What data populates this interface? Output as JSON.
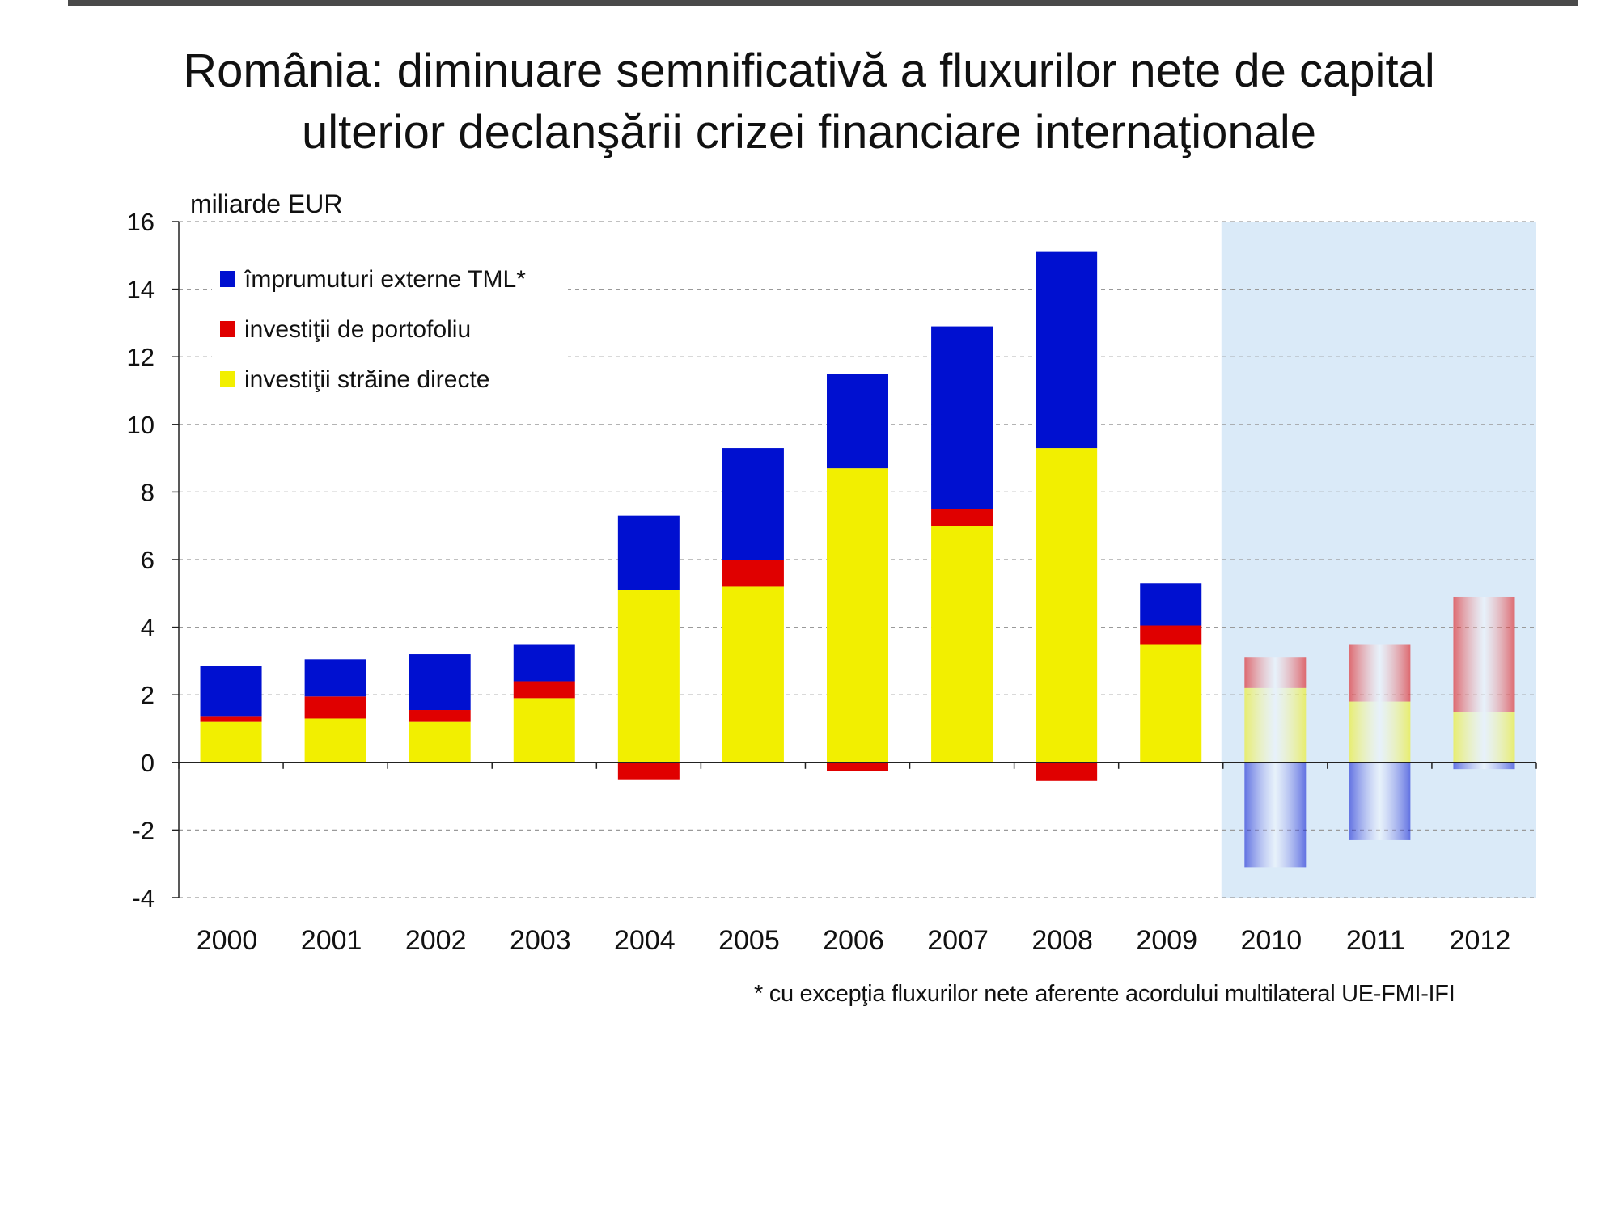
{
  "title": {
    "line1": "România: diminuare semnificativă a fluxurilor nete de capital",
    "line2": "ulterior declanşării crizei financiare internaţionale"
  },
  "footnote": "* cu excepţia fluxurilor nete aferente acordului multilateral UE-FMI-IFI",
  "chart_data": {
    "type": "bar",
    "stacked": true,
    "unit_label": "miliarde EUR",
    "categories": [
      "2000",
      "2001",
      "2002",
      "2003",
      "2004",
      "2005",
      "2006",
      "2007",
      "2008",
      "2009",
      "2010",
      "2011",
      "2012"
    ],
    "series": [
      {
        "name": "investiţii străine directe",
        "color": "#f2ef00",
        "values": [
          1.2,
          1.3,
          1.2,
          1.9,
          5.1,
          5.2,
          8.7,
          7.0,
          9.3,
          3.5,
          2.2,
          1.8,
          1.5
        ]
      },
      {
        "name": "investiţii de portofoliu",
        "color": "#e00000",
        "values": [
          0.15,
          0.65,
          0.35,
          0.5,
          -0.5,
          0.8,
          -0.25,
          0.5,
          -0.55,
          0.55,
          0.9,
          1.7,
          3.4
        ]
      },
      {
        "name": "împrumuturi externe TML*",
        "color": "#0010d0",
        "values": [
          1.5,
          1.1,
          1.65,
          1.1,
          2.2,
          3.3,
          2.8,
          5.4,
          5.8,
          1.25,
          -3.1,
          -2.3,
          -0.2
        ]
      }
    ],
    "ylim": [
      -4,
      16
    ],
    "yticks": [
      "16",
      "14",
      "12",
      "10",
      "8",
      "6",
      "4",
      "2",
      "0",
      "-2",
      "-4"
    ],
    "grid": true,
    "legend_position": "top-left",
    "shaded_categories": [
      "2010",
      "2011",
      "2012"
    ],
    "shade_color": "#daeaf8"
  }
}
